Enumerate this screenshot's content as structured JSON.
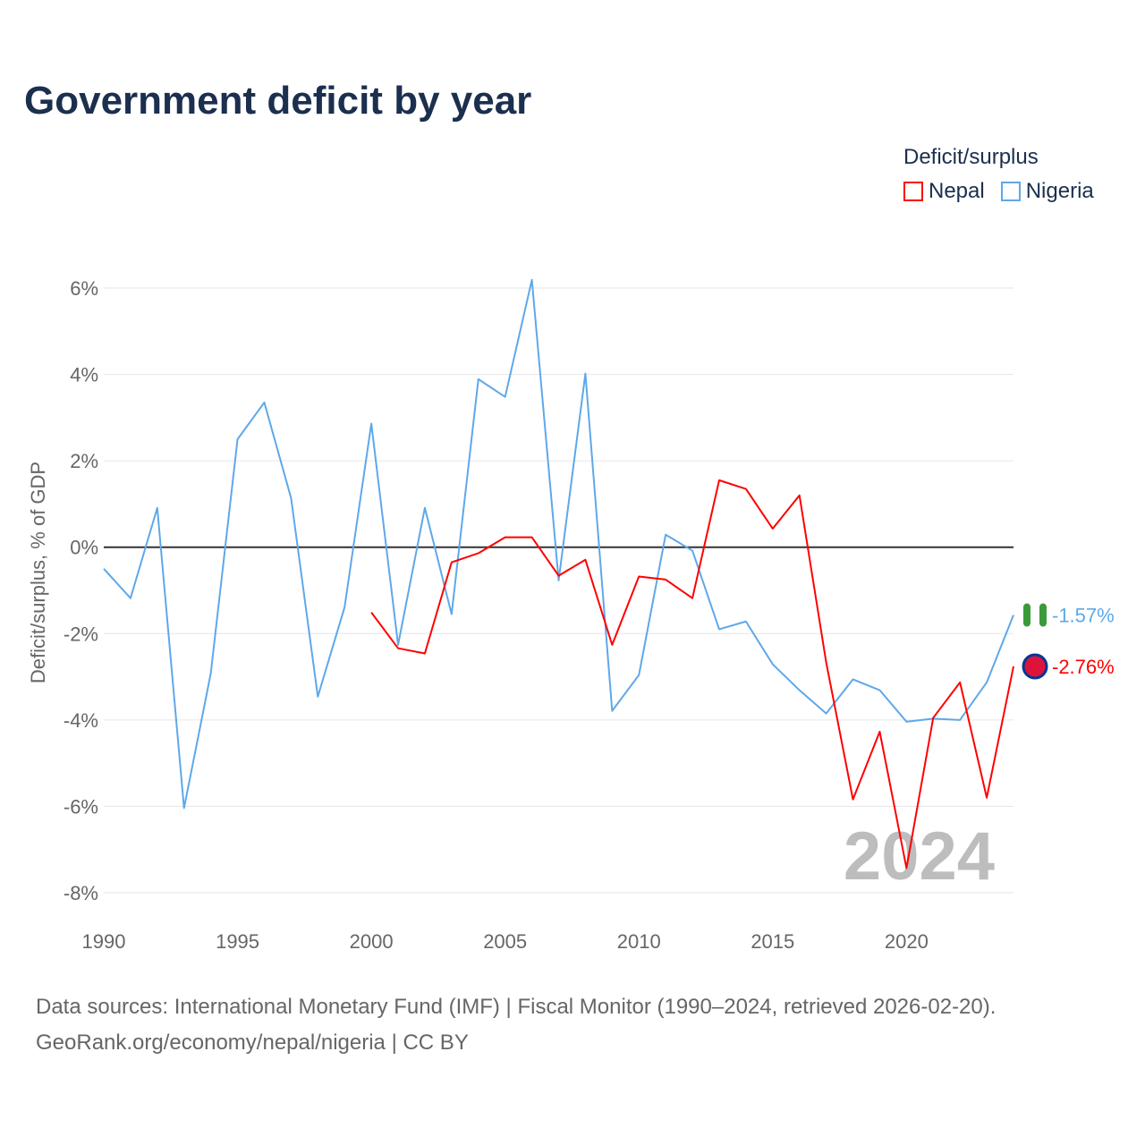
{
  "title": "Government deficit by year",
  "legend": {
    "title": "Deficit/surplus",
    "items": [
      "Nepal",
      "Nigeria"
    ]
  },
  "source_line1": "Data sources: International Monetary Fund (IMF) | Fiscal Monitor (1990–2024, retrieved 2026-02-20).",
  "source_line2": "GeoRank.org/economy/nepal/nigeria | CC BY",
  "chart_data": {
    "type": "line",
    "title": "Government deficit by year",
    "xlabel": "",
    "ylabel": "Deficit/surplus, % of GDP",
    "xlim": [
      1990,
      2024
    ],
    "ylim": [
      -8,
      6
    ],
    "x_ticks": [
      1990,
      1995,
      2000,
      2005,
      2010,
      2015,
      2020
    ],
    "x_tick_labels": [
      "1990",
      "1995",
      "2000",
      "2005",
      "2010",
      "2015",
      "2020"
    ],
    "y_ticks": [
      6,
      4,
      2,
      0,
      -2,
      -4,
      -6,
      -8
    ],
    "y_tick_labels": [
      "6%",
      "4%",
      "2%",
      "0%",
      "-2%",
      "-4%",
      "-6%",
      "-8%"
    ],
    "grid": true,
    "legend_position": "top-right",
    "annotation": "2024",
    "series": [
      {
        "name": "Nepal",
        "color": "#ff0000",
        "end_label": "-2.76%",
        "x": [
          2000,
          2001,
          2002,
          2003,
          2004,
          2005,
          2006,
          2007,
          2008,
          2009,
          2010,
          2011,
          2012,
          2013,
          2014,
          2015,
          2016,
          2017,
          2018,
          2019,
          2020,
          2021,
          2022,
          2023,
          2024
        ],
        "values": [
          -1.51,
          -2.34,
          -2.46,
          -0.35,
          -0.14,
          0.23,
          0.23,
          -0.66,
          -0.29,
          -2.26,
          -0.68,
          -0.75,
          -1.18,
          1.55,
          1.35,
          0.43,
          1.2,
          -2.67,
          -5.84,
          -4.27,
          -7.43,
          -3.95,
          -3.13,
          -5.8,
          -2.76
        ]
      },
      {
        "name": "Nigeria",
        "color": "#5ea8ea",
        "end_label": "-1.57%",
        "x": [
          1990,
          1991,
          1992,
          1993,
          1994,
          1995,
          1996,
          1997,
          1998,
          1999,
          2000,
          2001,
          2002,
          2003,
          2004,
          2005,
          2006,
          2007,
          2008,
          2009,
          2010,
          2011,
          2012,
          2013,
          2014,
          2015,
          2016,
          2017,
          2018,
          2019,
          2020,
          2021,
          2022,
          2023,
          2024
        ],
        "values": [
          -0.5,
          -1.18,
          0.91,
          -6.04,
          -2.92,
          2.5,
          3.35,
          1.14,
          -3.46,
          -1.39,
          2.86,
          -2.26,
          0.91,
          -1.55,
          3.89,
          3.48,
          6.19,
          -0.77,
          4.02,
          -3.79,
          -2.96,
          0.29,
          -0.08,
          -1.9,
          -1.72,
          -2.71,
          -3.31,
          -3.85,
          -3.06,
          -3.31,
          -4.04,
          -3.97,
          -4.0,
          -3.13,
          -1.57
        ]
      }
    ]
  }
}
